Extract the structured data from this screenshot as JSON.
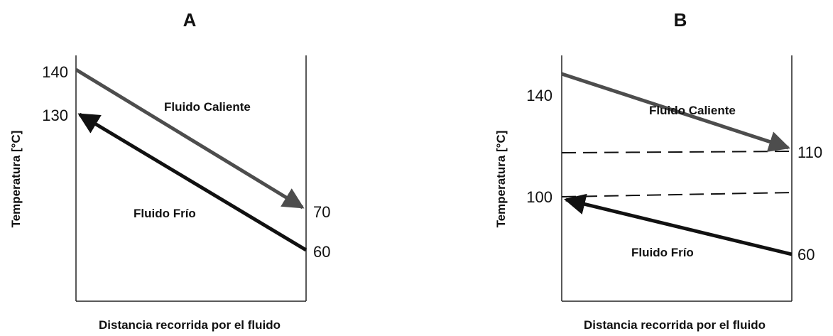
{
  "panels": [
    {
      "title": "A",
      "ylabel": "Temperatura [°C]",
      "xlabel": "Distancia recorrida por el fluido",
      "hot": {
        "label": "Fluido Caliente",
        "start": 140,
        "end": 70
      },
      "cold": {
        "label": "Fluido Frío",
        "start": 60,
        "end": 130
      },
      "tick_labels": [
        "140",
        "130",
        "70",
        "60"
      ]
    },
    {
      "title": "B",
      "ylabel": "Temperatura [°C]",
      "xlabel": "Distancia recorrida por el fluido",
      "hot": {
        "label": "Fluido Caliente",
        "start": 140,
        "end": 110
      },
      "cold": {
        "label": "Fluido Frío",
        "start": 60,
        "end": 100
      },
      "tick_labels": [
        "140",
        "110",
        "100",
        "60"
      ]
    }
  ],
  "colors": {
    "hot": "#4d4d4d",
    "cold": "#111111",
    "axis": "#222222"
  }
}
